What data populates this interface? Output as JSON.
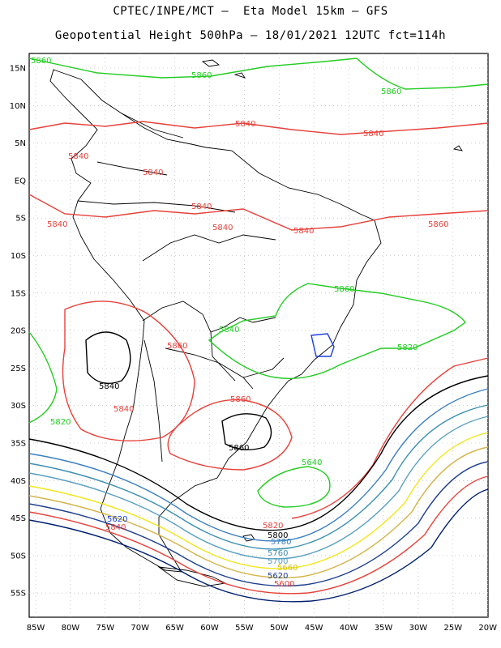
{
  "header": {
    "line1": "CPTEC/INPE/MCT –  Eta Model 15km – GFS",
    "line2": "Geopotential Height 500hPa – 18/01/2021 12UTC fct=114h"
  },
  "axes": {
    "lat_ticks": [
      "15N",
      "10N",
      "5N",
      "EQ",
      "5S",
      "10S",
      "15S",
      "20S",
      "25S",
      "30S",
      "35S",
      "40S",
      "45S",
      "50S",
      "55S"
    ],
    "lon_ticks": [
      "85W",
      "80W",
      "75W",
      "70W",
      "65W",
      "60W",
      "55W",
      "50W",
      "45W",
      "40W",
      "35W",
      "30W",
      "25W",
      "20W"
    ]
  },
  "colors": {
    "green": "#22cc22",
    "red": "#e8403a",
    "black": "#000000",
    "coast": "#000000",
    "grid": "#aaaaaa"
  },
  "contour_labels": [
    {
      "text": "5860",
      "color": "green"
    },
    {
      "text": "5860",
      "color": "green"
    },
    {
      "text": "5860",
      "color": "green"
    },
    {
      "text": "5840",
      "color": "red"
    },
    {
      "text": "5840",
      "color": "red"
    },
    {
      "text": "5840",
      "color": "red"
    },
    {
      "text": "5840",
      "color": "red"
    },
    {
      "text": "5840",
      "color": "red"
    },
    {
      "text": "5840",
      "color": "red"
    },
    {
      "text": "5840",
      "color": "red"
    },
    {
      "text": "5840",
      "color": "red"
    },
    {
      "text": "5860",
      "color": "green"
    },
    {
      "text": "5860",
      "color": "green"
    },
    {
      "text": "5840",
      "color": "red"
    },
    {
      "text": "5860",
      "color": "green"
    },
    {
      "text": "5820",
      "color": "black"
    },
    {
      "text": "5840",
      "color": "red"
    },
    {
      "text": "5860",
      "color": "green"
    },
    {
      "text": "5840",
      "color": "red"
    },
    {
      "text": "5820",
      "color": "black"
    },
    {
      "text": "5860",
      "color": "green"
    },
    {
      "text": "5640",
      "color": "blue"
    },
    {
      "text": "5620",
      "color": "red"
    },
    {
      "text": "5840",
      "color": "red"
    },
    {
      "text": "5820",
      "color": "black"
    },
    {
      "text": "5800",
      "color": "steel"
    },
    {
      "text": "5780",
      "color": "steel"
    },
    {
      "text": "5760",
      "color": "steel"
    },
    {
      "text": "5700",
      "color": "yellow"
    },
    {
      "text": "5660",
      "color": "navy"
    },
    {
      "text": "5620",
      "color": "red"
    },
    {
      "text": "5600",
      "color": "navy"
    }
  ]
}
